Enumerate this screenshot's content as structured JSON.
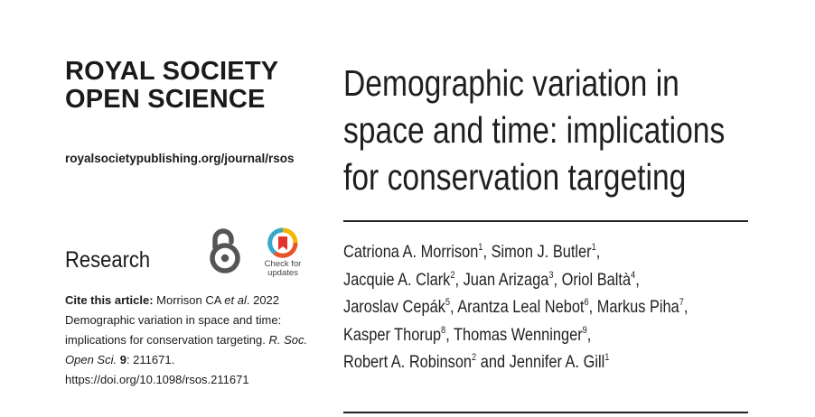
{
  "journal": {
    "name_line1": "ROYAL SOCIETY",
    "name_line2": "OPEN SCIENCE",
    "url": "royalsocietypublishing.org/journal/rsos"
  },
  "section": "Research",
  "badges": {
    "open_access_icon": "open-access-lock-icon",
    "check_updates_icon": "check-for-updates-icon",
    "check_updates_line1": "Check for",
    "check_updates_line2": "updates",
    "colors": {
      "open_access": "#555555",
      "updates_ring": [
        "#f4b400",
        "#e8542a",
        "#39a9c9"
      ],
      "updates_bookmark": "#e5332a"
    }
  },
  "citation": {
    "label": "Cite this article:",
    "authors": " Morrison CA ",
    "et_al": "et al",
    "year": ". 2022",
    "title_line1": "Demographic variation in space and time:",
    "title_line2": "implications for conservation targeting. ",
    "journal_abbrev_1": "R. Soc.",
    "journal_abbrev_2": "Open Sci.",
    "volume": " 9",
    "article_number": ": 211671.",
    "doi": "https://doi.org/10.1098/rsos.211671"
  },
  "article": {
    "title_line1": "Demographic variation in",
    "title_line2": "space and time: implications",
    "title_line3": "for conservation targeting"
  },
  "authors": [
    {
      "name": "Catriona A. Morrison",
      "aff": "1",
      "sep": ", "
    },
    {
      "name": "Simon J. Butler",
      "aff": "1",
      "sep": ","
    },
    {
      "name": "Jacquie A. Clark",
      "aff": "2",
      "sep": ", "
    },
    {
      "name": "Juan Arizaga",
      "aff": "3",
      "sep": ", "
    },
    {
      "name": "Oriol Baltà",
      "aff": "4",
      "sep": ","
    },
    {
      "name": "Jaroslav Cepák",
      "aff": "5",
      "sep": ", "
    },
    {
      "name": "Arantza Leal Nebot",
      "aff": "6",
      "sep": ", "
    },
    {
      "name": "Markus Piha",
      "aff": "7",
      "sep": ","
    },
    {
      "name": "Kasper Thorup",
      "aff": "8",
      "sep": ", "
    },
    {
      "name": "Thomas Wenninger",
      "aff": "9",
      "sep": ","
    },
    {
      "name": "Robert A. Robinson",
      "aff": "2",
      "sep": " and "
    },
    {
      "name": "Jennifer A. Gill",
      "aff": "1",
      "sep": ""
    }
  ]
}
